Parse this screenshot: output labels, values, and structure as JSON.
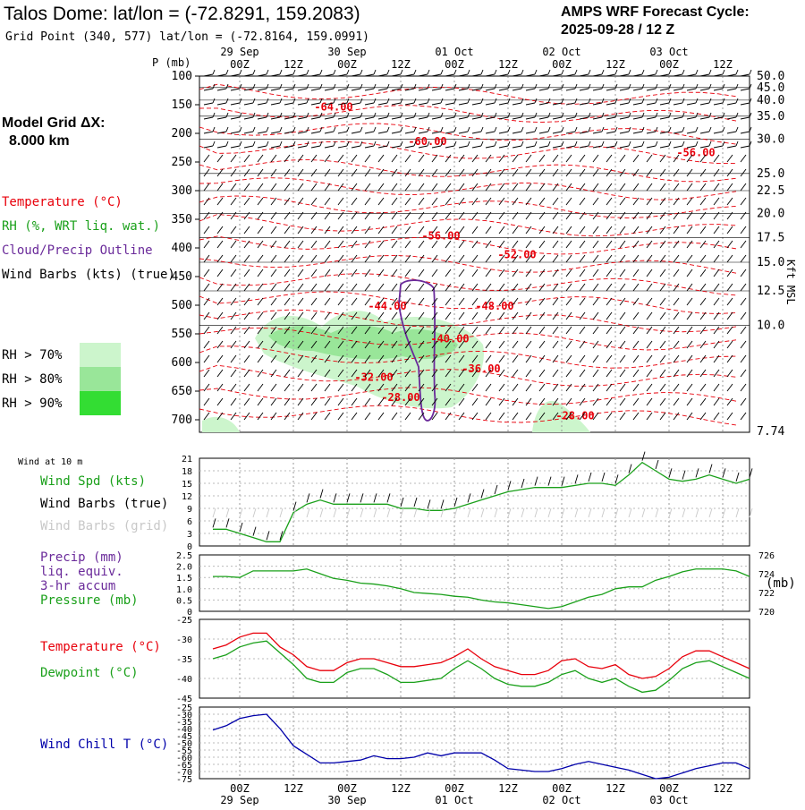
{
  "header": {
    "title": "Talos Dome:  lat/lon = (-72.8291, 159.2083)",
    "grid_point": "Grid Point (340, 577) lat/lon = (-72.8164, 159.0991)",
    "cycle_line1": "AMPS WRF Forecast Cycle:",
    "cycle_line2": "2025-09-28 / 12  Z",
    "model_grid_label": "Model Grid ΔX:",
    "model_grid_value": "8.000 km"
  },
  "time_axis": {
    "labels": [
      "00Z",
      "12Z",
      "00Z",
      "12Z",
      "00Z",
      "12Z",
      "00Z",
      "12Z",
      "00Z",
      "12Z"
    ],
    "dates": [
      "29 Sep",
      "30 Sep",
      "01 Oct",
      "02 Oct",
      "03 Oct"
    ]
  },
  "upper_panel": {
    "p_label": "P (mb)",
    "kft_label": "Kft MSL",
    "legend_items": [
      "Temperature (°C)",
      "RH (%, WRT liq. wat.)",
      "Cloud/Precip Outline",
      "Wind Barbs (kts) (true)"
    ],
    "legend_colors": [
      "#e8000b",
      "#1aa01a",
      "#6a2a9a",
      "#000000"
    ],
    "rh_legend": [
      "RH > 70%",
      "RH > 80%",
      "RH > 90%"
    ],
    "rh_colors": [
      "#ccf5cc",
      "#99e699",
      "#33dd33"
    ]
  },
  "wind_panel": {
    "title": "Wind at 10 m",
    "legend": [
      "Wind Spd (kts)",
      "Wind Barbs (true)",
      "Wind Barbs (grid)"
    ],
    "legend_colors": [
      "#1aa01a",
      "#000000",
      "#c8c8c8"
    ]
  },
  "precip_panel": {
    "legend": [
      "Precip (mm)",
      "liq. equiv.",
      "3-hr accum",
      "Pressure (mb)"
    ],
    "legend_colors": [
      "#6a2a9a",
      "#6a2a9a",
      "#6a2a9a",
      "#1aa01a"
    ],
    "right_unit": "(mb)"
  },
  "temp_panel": {
    "legend": [
      "Temperature (°C)",
      "Dewpoint (°C)"
    ],
    "legend_colors": [
      "#e8000b",
      "#1aa01a"
    ]
  },
  "chill_panel": {
    "legend": [
      "Wind Chill T (°C)"
    ],
    "legend_colors": [
      "#0000aa"
    ]
  },
  "chart_data": [
    {
      "type": "heatmap",
      "name": "vertical cross-section",
      "x_hours": [
        -6,
        114
      ],
      "ylabel": "P (mb)",
      "ylim": [
        720,
        100
      ],
      "pressure_ticks": [
        100,
        150,
        200,
        250,
        300,
        350,
        400,
        450,
        500,
        550,
        600,
        650,
        700
      ],
      "height_ticks_kft": [
        {
          "p": 100,
          "label": "50.0"
        },
        {
          "p": 120,
          "label": "45.0"
        },
        {
          "p": 142,
          "label": "40.0"
        },
        {
          "p": 170,
          "label": "35.0"
        },
        {
          "p": 210,
          "label": "30.0"
        },
        {
          "p": 270,
          "label": "25.0"
        },
        {
          "p": 300,
          "label": "22.5"
        },
        {
          "p": 340,
          "label": "20.0"
        },
        {
          "p": 382,
          "label": "17.5"
        },
        {
          "p": 425,
          "label": "15.0"
        },
        {
          "p": 475,
          "label": "12.5"
        },
        {
          "p": 535,
          "label": "10.0"
        },
        {
          "p": 720,
          "label": "7.74"
        }
      ],
      "temperature_labels": [
        {
          "hour": 21,
          "p": 160,
          "text": "-64.00"
        },
        {
          "hour": 42,
          "p": 220,
          "text": "-60.00"
        },
        {
          "hour": 102,
          "p": 240,
          "text": "-56.00"
        },
        {
          "hour": 45,
          "p": 385,
          "text": "-56.00"
        },
        {
          "hour": 62,
          "p": 418,
          "text": "-52.00"
        },
        {
          "hour": 57,
          "p": 508,
          "text": "-48.00"
        },
        {
          "hour": 33,
          "p": 508,
          "text": "-44.00"
        },
        {
          "hour": 47,
          "p": 565,
          "text": "-40.00"
        },
        {
          "hour": 54,
          "p": 617,
          "text": "-36.00"
        },
        {
          "hour": 30,
          "p": 632,
          "text": "-32.00"
        },
        {
          "hour": 36,
          "p": 667,
          "text": "-28.00"
        },
        {
          "hour": 75,
          "p": 699,
          "text": "-28.00"
        }
      ]
    },
    {
      "type": "line",
      "name": "10 m wind speed",
      "x_hours": [
        -6,
        -3,
        0,
        3,
        6,
        9,
        12,
        15,
        18,
        21,
        24,
        27,
        30,
        33,
        36,
        39,
        42,
        45,
        48,
        51,
        54,
        57,
        60,
        63,
        66,
        69,
        72,
        75,
        78,
        81,
        84,
        87,
        90,
        93,
        96,
        99,
        102,
        105,
        108,
        111,
        114
      ],
      "series": [
        {
          "name": "Wind Spd (kts)",
          "values": [
            4,
            4,
            3,
            2,
            1,
            1,
            8,
            10,
            11,
            10,
            10,
            10,
            10,
            10,
            9,
            9,
            8.5,
            8.5,
            9,
            10,
            11,
            12,
            13,
            13.5,
            14,
            14,
            14,
            14.5,
            15,
            15,
            14.5,
            17,
            20,
            18,
            16,
            15.5,
            16,
            17,
            16,
            15,
            16
          ]
        }
      ],
      "ylim": [
        0,
        21
      ],
      "yticks": [
        0,
        3,
        6,
        9,
        12,
        15,
        18,
        21
      ]
    },
    {
      "type": "line",
      "name": "surface pressure",
      "x_hours": [
        -6,
        -3,
        0,
        3,
        6,
        9,
        12,
        15,
        18,
        21,
        24,
        27,
        30,
        33,
        36,
        39,
        42,
        45,
        48,
        51,
        54,
        57,
        60,
        63,
        66,
        69,
        72,
        75,
        78,
        81,
        84,
        87,
        90,
        93,
        96,
        99,
        102,
        105,
        108,
        111,
        114
      ],
      "series": [
        {
          "name": "Pressure (mb)",
          "values": [
            723.7,
            723.7,
            723.6,
            724.3,
            724.3,
            724.3,
            724.3,
            724.5,
            724.0,
            723.5,
            723.3,
            723.0,
            722.9,
            722.7,
            722.4,
            722.0,
            721.9,
            721.8,
            721.6,
            721.5,
            721.2,
            721.0,
            720.9,
            720.7,
            720.5,
            720.3,
            720.5,
            721.0,
            721.5,
            721.8,
            722.4,
            722.6,
            722.6,
            723.3,
            723.7,
            724.2,
            724.5,
            724.5,
            724.5,
            724.3,
            723.7
          ]
        }
      ],
      "ylim": [
        720,
        726
      ],
      "y2ticks": [
        720,
        722,
        724,
        726
      ],
      "precip_ticks": [
        "0",
        "0.5",
        "1.0",
        "1.5",
        "2.0",
        "2.5"
      ]
    },
    {
      "type": "line",
      "name": "temperature and dewpoint",
      "x_hours": [
        -6,
        -3,
        0,
        3,
        6,
        9,
        12,
        15,
        18,
        21,
        24,
        27,
        30,
        33,
        36,
        39,
        42,
        45,
        48,
        51,
        54,
        57,
        60,
        63,
        66,
        69,
        72,
        75,
        78,
        81,
        84,
        87,
        90,
        93,
        96,
        99,
        102,
        105,
        108,
        111,
        114
      ],
      "series": [
        {
          "name": "Temperature",
          "values": [
            -32.5,
            -31.5,
            -29.5,
            -28.5,
            -28.5,
            -32,
            -34,
            -37,
            -38,
            -38,
            -36,
            -35,
            -35,
            -36,
            -37,
            -37,
            -36.5,
            -36,
            -34.5,
            -32.5,
            -35,
            -37,
            -38,
            -39,
            -39,
            -38,
            -35.5,
            -35,
            -37,
            -37.5,
            -36.5,
            -39,
            -40,
            -39.5,
            -37.5,
            -34.5,
            -33,
            -33,
            -34.5,
            -36,
            -37.5
          ]
        },
        {
          "name": "Dewpoint",
          "values": [
            -35,
            -34,
            -32,
            -31,
            -30.5,
            -33.5,
            -36.5,
            -40,
            -41,
            -41,
            -38.5,
            -37.5,
            -37.5,
            -39,
            -41,
            -41,
            -40.5,
            -40,
            -37.5,
            -35.5,
            -37.5,
            -40,
            -41.5,
            -42,
            -42,
            -41,
            -39,
            -38,
            -40,
            -41,
            -40,
            -42,
            -43.5,
            -43,
            -40.5,
            -37.5,
            -36,
            -35.5,
            -37,
            -38.5,
            -40
          ]
        }
      ],
      "ylim": [
        -45,
        -25
      ],
      "yticks": [
        -45,
        -40,
        -35,
        -30,
        -25
      ]
    },
    {
      "type": "line",
      "name": "wind chill",
      "x_hours": [
        -6,
        -3,
        0,
        3,
        6,
        9,
        12,
        15,
        18,
        21,
        24,
        27,
        30,
        33,
        36,
        39,
        42,
        45,
        48,
        51,
        54,
        57,
        60,
        63,
        66,
        69,
        72,
        75,
        78,
        81,
        84,
        87,
        90,
        93,
        96,
        99,
        102,
        105,
        108,
        111,
        114
      ],
      "series": [
        {
          "name": "Wind Chill T",
          "values": [
            -41,
            -38,
            -33,
            -31,
            -30,
            -40,
            -52,
            -58,
            -64,
            -64,
            -63,
            -62,
            -59,
            -61,
            -61,
            -60,
            -57,
            -59,
            -57,
            -57,
            -57,
            -62,
            -68,
            -69,
            -70,
            -70,
            -68,
            -65,
            -63,
            -65,
            -67,
            -69,
            -72,
            -75,
            -74,
            -71,
            -68,
            -66,
            -64,
            -64,
            -68
          ]
        }
      ],
      "ylim": [
        -75,
        -25
      ],
      "yticks": [
        -75,
        -70,
        -65,
        -60,
        -55,
        -50,
        -45,
        -40,
        -35,
        -30,
        -25
      ]
    }
  ]
}
